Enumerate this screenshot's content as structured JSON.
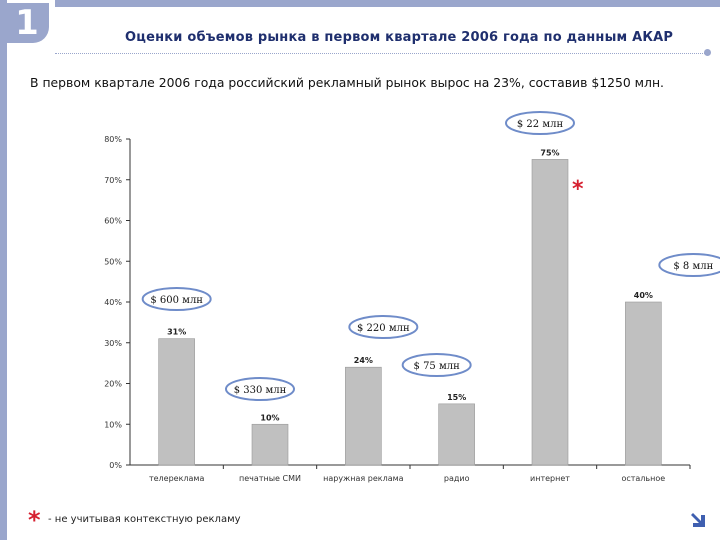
{
  "slide": {
    "number": "1",
    "title": "Оценки объемов рынка в первом квартале 2006 года по данным АКАР",
    "subtitle": "В первом квартале 2006 года российский рекламный рынок вырос на 23%, составив $1250 млн.",
    "footnote_star": "*",
    "footnote": "- не учитывая контекстную рекламу",
    "nav_icon": "next-arrow-icon"
  },
  "chart_data": {
    "type": "bar",
    "categories": [
      "телереклама",
      "печатные СМИ",
      "наружная реклама",
      "радио",
      "интернет",
      "остальное"
    ],
    "values": [
      31,
      10,
      24,
      15,
      75,
      40
    ],
    "value_labels": [
      "31%",
      "10%",
      "24%",
      "15%",
      "75%",
      "40%"
    ],
    "money_labels": [
      "$ 600 млн",
      "$ 330 млн",
      "$ 220 млн",
      "$ 75 млн",
      "$ 22 млн",
      "$ 8 млн"
    ],
    "ylim": [
      0,
      80
    ],
    "yticks": [
      0,
      10,
      20,
      30,
      40,
      50,
      60,
      70,
      80
    ],
    "ytick_labels": [
      "0%",
      "10%",
      "20%",
      "30%",
      "40%",
      "50%",
      "60%",
      "70%",
      "80%"
    ],
    "asterisk_category": "интернет",
    "asterisk": "*",
    "grid": false,
    "bar_color": "#c0c0c0",
    "title": "",
    "xlabel": "",
    "ylabel": ""
  }
}
